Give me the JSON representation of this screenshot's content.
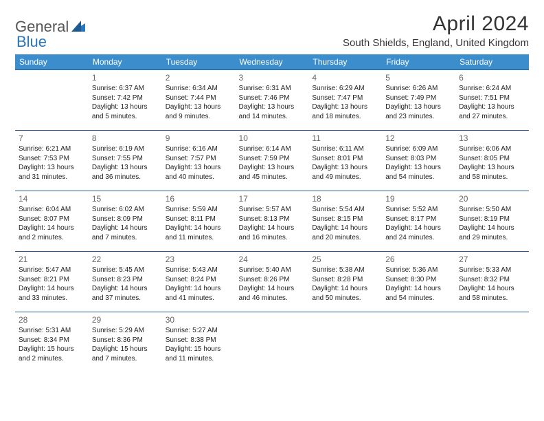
{
  "logo": {
    "text_general": "General",
    "text_blue": "Blue"
  },
  "header": {
    "month_title": "April 2024",
    "location": "South Shields, England, United Kingdom"
  },
  "colors": {
    "header_bg": "#3c8dcc",
    "header_text": "#ffffff",
    "row_border": "#2a5a8a",
    "body_text": "#222222",
    "daynum_text": "#666666",
    "logo_gray": "#555555",
    "logo_blue": "#2976bb"
  },
  "weekdays": [
    "Sunday",
    "Monday",
    "Tuesday",
    "Wednesday",
    "Thursday",
    "Friday",
    "Saturday"
  ],
  "weeks": [
    [
      null,
      {
        "n": "1",
        "sr": "Sunrise: 6:37 AM",
        "ss": "Sunset: 7:42 PM",
        "d1": "Daylight: 13 hours",
        "d2": "and 5 minutes."
      },
      {
        "n": "2",
        "sr": "Sunrise: 6:34 AM",
        "ss": "Sunset: 7:44 PM",
        "d1": "Daylight: 13 hours",
        "d2": "and 9 minutes."
      },
      {
        "n": "3",
        "sr": "Sunrise: 6:31 AM",
        "ss": "Sunset: 7:46 PM",
        "d1": "Daylight: 13 hours",
        "d2": "and 14 minutes."
      },
      {
        "n": "4",
        "sr": "Sunrise: 6:29 AM",
        "ss": "Sunset: 7:47 PM",
        "d1": "Daylight: 13 hours",
        "d2": "and 18 minutes."
      },
      {
        "n": "5",
        "sr": "Sunrise: 6:26 AM",
        "ss": "Sunset: 7:49 PM",
        "d1": "Daylight: 13 hours",
        "d2": "and 23 minutes."
      },
      {
        "n": "6",
        "sr": "Sunrise: 6:24 AM",
        "ss": "Sunset: 7:51 PM",
        "d1": "Daylight: 13 hours",
        "d2": "and 27 minutes."
      }
    ],
    [
      {
        "n": "7",
        "sr": "Sunrise: 6:21 AM",
        "ss": "Sunset: 7:53 PM",
        "d1": "Daylight: 13 hours",
        "d2": "and 31 minutes."
      },
      {
        "n": "8",
        "sr": "Sunrise: 6:19 AM",
        "ss": "Sunset: 7:55 PM",
        "d1": "Daylight: 13 hours",
        "d2": "and 36 minutes."
      },
      {
        "n": "9",
        "sr": "Sunrise: 6:16 AM",
        "ss": "Sunset: 7:57 PM",
        "d1": "Daylight: 13 hours",
        "d2": "and 40 minutes."
      },
      {
        "n": "10",
        "sr": "Sunrise: 6:14 AM",
        "ss": "Sunset: 7:59 PM",
        "d1": "Daylight: 13 hours",
        "d2": "and 45 minutes."
      },
      {
        "n": "11",
        "sr": "Sunrise: 6:11 AM",
        "ss": "Sunset: 8:01 PM",
        "d1": "Daylight: 13 hours",
        "d2": "and 49 minutes."
      },
      {
        "n": "12",
        "sr": "Sunrise: 6:09 AM",
        "ss": "Sunset: 8:03 PM",
        "d1": "Daylight: 13 hours",
        "d2": "and 54 minutes."
      },
      {
        "n": "13",
        "sr": "Sunrise: 6:06 AM",
        "ss": "Sunset: 8:05 PM",
        "d1": "Daylight: 13 hours",
        "d2": "and 58 minutes."
      }
    ],
    [
      {
        "n": "14",
        "sr": "Sunrise: 6:04 AM",
        "ss": "Sunset: 8:07 PM",
        "d1": "Daylight: 14 hours",
        "d2": "and 2 minutes."
      },
      {
        "n": "15",
        "sr": "Sunrise: 6:02 AM",
        "ss": "Sunset: 8:09 PM",
        "d1": "Daylight: 14 hours",
        "d2": "and 7 minutes."
      },
      {
        "n": "16",
        "sr": "Sunrise: 5:59 AM",
        "ss": "Sunset: 8:11 PM",
        "d1": "Daylight: 14 hours",
        "d2": "and 11 minutes."
      },
      {
        "n": "17",
        "sr": "Sunrise: 5:57 AM",
        "ss": "Sunset: 8:13 PM",
        "d1": "Daylight: 14 hours",
        "d2": "and 16 minutes."
      },
      {
        "n": "18",
        "sr": "Sunrise: 5:54 AM",
        "ss": "Sunset: 8:15 PM",
        "d1": "Daylight: 14 hours",
        "d2": "and 20 minutes."
      },
      {
        "n": "19",
        "sr": "Sunrise: 5:52 AM",
        "ss": "Sunset: 8:17 PM",
        "d1": "Daylight: 14 hours",
        "d2": "and 24 minutes."
      },
      {
        "n": "20",
        "sr": "Sunrise: 5:50 AM",
        "ss": "Sunset: 8:19 PM",
        "d1": "Daylight: 14 hours",
        "d2": "and 29 minutes."
      }
    ],
    [
      {
        "n": "21",
        "sr": "Sunrise: 5:47 AM",
        "ss": "Sunset: 8:21 PM",
        "d1": "Daylight: 14 hours",
        "d2": "and 33 minutes."
      },
      {
        "n": "22",
        "sr": "Sunrise: 5:45 AM",
        "ss": "Sunset: 8:23 PM",
        "d1": "Daylight: 14 hours",
        "d2": "and 37 minutes."
      },
      {
        "n": "23",
        "sr": "Sunrise: 5:43 AM",
        "ss": "Sunset: 8:24 PM",
        "d1": "Daylight: 14 hours",
        "d2": "and 41 minutes."
      },
      {
        "n": "24",
        "sr": "Sunrise: 5:40 AM",
        "ss": "Sunset: 8:26 PM",
        "d1": "Daylight: 14 hours",
        "d2": "and 46 minutes."
      },
      {
        "n": "25",
        "sr": "Sunrise: 5:38 AM",
        "ss": "Sunset: 8:28 PM",
        "d1": "Daylight: 14 hours",
        "d2": "and 50 minutes."
      },
      {
        "n": "26",
        "sr": "Sunrise: 5:36 AM",
        "ss": "Sunset: 8:30 PM",
        "d1": "Daylight: 14 hours",
        "d2": "and 54 minutes."
      },
      {
        "n": "27",
        "sr": "Sunrise: 5:33 AM",
        "ss": "Sunset: 8:32 PM",
        "d1": "Daylight: 14 hours",
        "d2": "and 58 minutes."
      }
    ],
    [
      {
        "n": "28",
        "sr": "Sunrise: 5:31 AM",
        "ss": "Sunset: 8:34 PM",
        "d1": "Daylight: 15 hours",
        "d2": "and 2 minutes."
      },
      {
        "n": "29",
        "sr": "Sunrise: 5:29 AM",
        "ss": "Sunset: 8:36 PM",
        "d1": "Daylight: 15 hours",
        "d2": "and 7 minutes."
      },
      {
        "n": "30",
        "sr": "Sunrise: 5:27 AM",
        "ss": "Sunset: 8:38 PM",
        "d1": "Daylight: 15 hours",
        "d2": "and 11 minutes."
      },
      null,
      null,
      null,
      null
    ]
  ]
}
